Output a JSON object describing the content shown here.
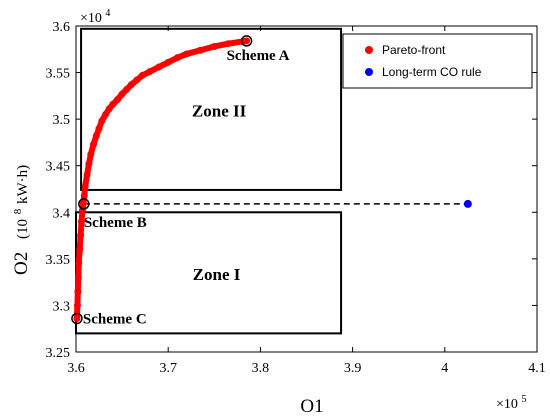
{
  "chart_data": {
    "type": "scatter",
    "xlabel": "O1",
    "ylabel": "O2",
    "ylabel_unit_base": "(10",
    "ylabel_unit_exp": "8",
    "ylabel_unit_rest": " kW·h)",
    "x_multiplier_base": "×10",
    "x_multiplier_exp": "5",
    "y_multiplier_base": "×10",
    "y_multiplier_exp": "4",
    "xlim": [
      3.6,
      4.1
    ],
    "ylim": [
      3.25,
      3.6
    ],
    "x_ticks": [
      3.6,
      3.7,
      3.8,
      3.9,
      4.0,
      4.1
    ],
    "x_tick_labels": [
      "3.6",
      "3.7",
      "3.8",
      "3.9",
      "4",
      "4.1"
    ],
    "y_ticks": [
      3.25,
      3.3,
      3.35,
      3.4,
      3.45,
      3.5,
      3.55,
      3.6
    ],
    "y_tick_labels": [
      "3.25",
      "3.3",
      "3.35",
      "3.4",
      "3.45",
      "3.5",
      "3.55",
      "3.6"
    ],
    "grid": false,
    "legend_position": "top-right",
    "series": [
      {
        "name": "Pareto-front",
        "color": "#ff0000",
        "x": [
          3.601,
          3.6015,
          3.602,
          3.6025,
          3.603,
          3.604,
          3.605,
          3.606,
          3.607,
          3.608,
          3.609,
          3.61,
          3.612,
          3.614,
          3.616,
          3.619,
          3.622,
          3.625,
          3.628,
          3.632,
          3.636,
          3.64,
          3.645,
          3.65,
          3.655,
          3.66,
          3.666,
          3.672,
          3.68,
          3.69,
          3.7,
          3.71,
          3.72,
          3.735,
          3.75,
          3.765,
          3.785
        ],
        "y": [
          3.286,
          3.3,
          3.315,
          3.33,
          3.345,
          3.36,
          3.375,
          3.39,
          3.402,
          3.41,
          3.418,
          3.428,
          3.44,
          3.452,
          3.462,
          3.473,
          3.482,
          3.49,
          3.498,
          3.505,
          3.511,
          3.516,
          3.521,
          3.527,
          3.532,
          3.537,
          3.542,
          3.547,
          3.551,
          3.556,
          3.561,
          3.566,
          3.57,
          3.574,
          3.578,
          3.581,
          3.584
        ]
      },
      {
        "name": "Long-term CO rule",
        "color": "#0000ff",
        "x": [
          4.025
        ],
        "y": [
          3.409
        ]
      }
    ],
    "schemes": [
      {
        "label": "Scheme A",
        "x": 3.785,
        "y": 3.584
      },
      {
        "label": "Scheme B",
        "x": 3.6085,
        "y": 3.409
      },
      {
        "label": "Scheme C",
        "x": 3.601,
        "y": 3.286
      }
    ],
    "zones": [
      {
        "label": "Zone II",
        "x_range": [
          3.6055,
          3.8875
        ],
        "y_range": [
          3.424,
          3.597
        ]
      },
      {
        "label": "Zone I",
        "x_range": [
          3.6,
          3.8875
        ],
        "y_range": [
          3.27,
          3.4
        ]
      }
    ],
    "reference_line": {
      "x": [
        3.6085,
        4.025
      ],
      "y": [
        3.409,
        3.409
      ],
      "style": "dashed"
    }
  }
}
